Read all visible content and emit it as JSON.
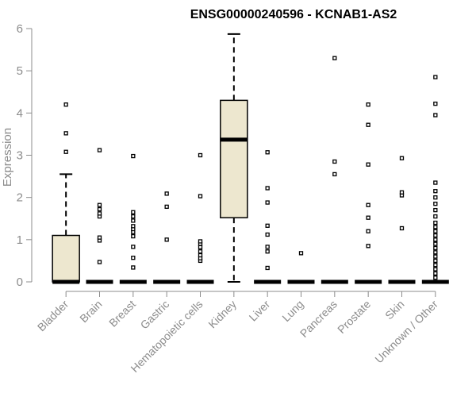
{
  "chart_data": {
    "type": "box",
    "title": "ENSG00000240596 - KCNAB1-AS2",
    "ylabel": "Expression",
    "xlabel": "",
    "ylim": [
      0,
      6
    ],
    "yticks": [
      0,
      1,
      2,
      3,
      4,
      5,
      6
    ],
    "box_fill": "#ede7cf",
    "categories": [
      "Bladder",
      "Brain",
      "Breast",
      "Gastric",
      "Hematopoietic cells",
      "Kidney",
      "Liver",
      "Lung",
      "Pancreas",
      "Prostate",
      "Skin",
      "Unknown / Other"
    ],
    "boxes": [
      {
        "name": "Bladder",
        "min": 0,
        "q1": 0,
        "median": 0,
        "q3": 1.1,
        "max": 2.55,
        "outliers": [
          3.08,
          3.52,
          4.2
        ]
      },
      {
        "name": "Brain",
        "min": 0,
        "q1": 0,
        "median": 0,
        "q3": 0,
        "max": 0,
        "outliers": [
          0.47,
          0.98,
          1.05,
          1.55,
          1.62,
          1.72,
          1.82,
          3.12
        ]
      },
      {
        "name": "Breast",
        "min": 0,
        "q1": 0,
        "median": 0,
        "q3": 0,
        "max": 0,
        "outliers": [
          0.34,
          0.57,
          0.83,
          1.08,
          1.18,
          1.25,
          1.32,
          1.45,
          1.55,
          1.65,
          2.98
        ]
      },
      {
        "name": "Gastric",
        "min": 0,
        "q1": 0,
        "median": 0,
        "q3": 0,
        "max": 0,
        "outliers": [
          1.0,
          1.78,
          2.09
        ]
      },
      {
        "name": "Hematopoietic cells",
        "min": 0,
        "q1": 0,
        "median": 0,
        "q3": 0,
        "max": 0,
        "outliers": [
          0.5,
          0.56,
          0.63,
          0.72,
          0.82,
          0.9,
          0.96,
          2.03,
          3.0
        ]
      },
      {
        "name": "Kidney",
        "min": 0,
        "q1": 1.52,
        "median": 3.37,
        "q3": 4.3,
        "max": 5.87,
        "outliers": []
      },
      {
        "name": "Liver",
        "min": 0,
        "q1": 0,
        "median": 0,
        "q3": 0,
        "max": 0,
        "outliers": [
          0.33,
          0.72,
          0.83,
          1.12,
          1.33,
          1.88,
          2.22,
          3.07
        ]
      },
      {
        "name": "Lung",
        "min": 0,
        "q1": 0,
        "median": 0,
        "q3": 0,
        "max": 0,
        "outliers": [
          0.68
        ]
      },
      {
        "name": "Pancreas",
        "min": 0,
        "q1": 0,
        "median": 0,
        "q3": 0,
        "max": 0,
        "outliers": [
          2.55,
          2.85,
          5.3
        ]
      },
      {
        "name": "Prostate",
        "min": 0,
        "q1": 0,
        "median": 0,
        "q3": 0,
        "max": 0,
        "outliers": [
          0.85,
          1.2,
          1.52,
          1.82,
          2.78,
          3.72,
          4.2
        ]
      },
      {
        "name": "Skin",
        "min": 0,
        "q1": 0,
        "median": 0,
        "q3": 0,
        "max": 0,
        "outliers": [
          1.27,
          2.05,
          2.12,
          2.93
        ]
      },
      {
        "name": "Unknown / Other",
        "min": 0,
        "q1": 0,
        "median": 0,
        "q3": 0,
        "max": 0,
        "outliers": [
          0.1,
          0.2,
          0.3,
          0.4,
          0.5,
          0.6,
          0.7,
          0.8,
          0.9,
          1.0,
          1.1,
          1.2,
          1.3,
          1.4,
          1.55,
          1.7,
          1.85,
          2.0,
          2.15,
          2.35,
          3.95,
          4.22,
          4.85
        ]
      }
    ]
  }
}
